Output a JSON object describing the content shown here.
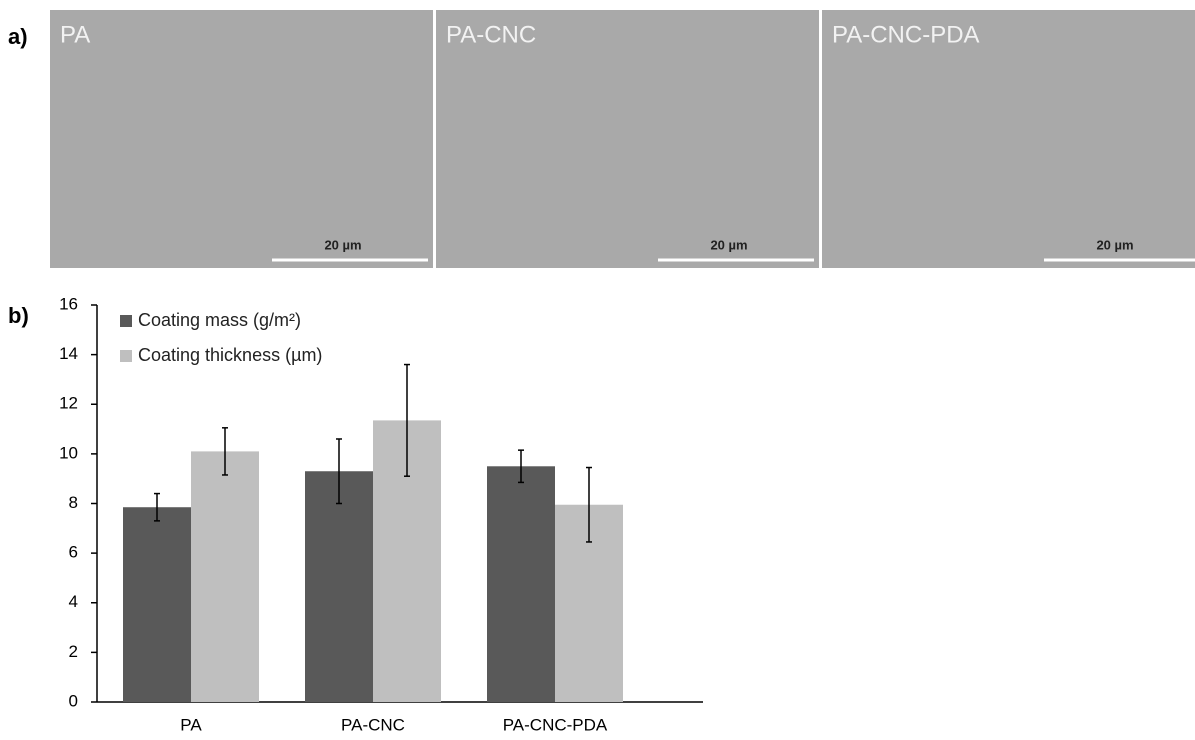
{
  "panel_labels": [
    "a)",
    "b)"
  ],
  "images": [
    {
      "label": "PA",
      "scale_bar": "20 µm"
    },
    {
      "label": "PA-CNC",
      "scale_bar": "20 µm"
    },
    {
      "label": "PA-CNC-PDA",
      "scale_bar": "20 µm"
    }
  ],
  "chart_data": {
    "type": "bar",
    "categories": [
      "PA",
      "PA-CNC",
      "PA-CNC-PDA"
    ],
    "series": [
      {
        "name": "Coating mass  (g/m²)",
        "color": "#595959",
        "values": [
          7.85,
          9.3,
          9.5
        ],
        "errors": [
          0.55,
          1.3,
          0.65
        ]
      },
      {
        "name": "Coating thickness (µm)",
        "color": "#bfbfbf",
        "values": [
          10.1,
          11.35,
          7.95
        ],
        "errors": [
          0.95,
          2.25,
          1.5
        ]
      }
    ],
    "ylim": [
      0,
      16
    ],
    "yticks": [
      0,
      2,
      4,
      6,
      8,
      10,
      12,
      14,
      16
    ],
    "grid": false,
    "legend": "top-left"
  }
}
